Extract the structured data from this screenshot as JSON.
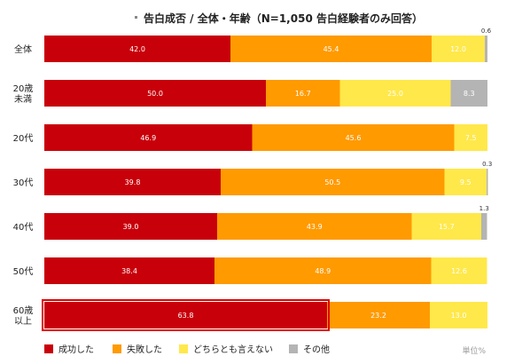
{
  "chart_data": {
    "type": "bar",
    "orientation": "horizontal",
    "stacked": true,
    "title": "告白成否 / 全体・年齢（N=1,050 告白経験者のみ回答）",
    "unit_note": "単位%",
    "categories": [
      "全体",
      "20歳\n未満",
      "20代",
      "30代",
      "40代",
      "50代",
      "60歳\n以上"
    ],
    "xlim": [
      0,
      100
    ],
    "grid": false,
    "legend_position": "bottom",
    "highlight_category": "60歳\n以上",
    "series": [
      {
        "name": "成功した",
        "color": "#c8000a",
        "values": [
          42.0,
          50.0,
          46.9,
          39.8,
          39.0,
          38.4,
          63.8
        ]
      },
      {
        "name": "失敗した",
        "color": "#ff9a00",
        "values": [
          45.4,
          16.7,
          45.6,
          50.5,
          43.9,
          48.9,
          23.2
        ]
      },
      {
        "name": "どちらとも言えない",
        "color": "#ffe84a",
        "values": [
          12.0,
          25.0,
          7.5,
          9.5,
          15.7,
          12.6,
          13.0
        ]
      },
      {
        "name": "その他",
        "color": "#b4b4b4",
        "values": [
          0.6,
          8.3,
          0.0,
          0.3,
          1.3,
          0.0,
          0.0
        ]
      }
    ],
    "data_labels": [
      [
        "42.0",
        "45.4",
        "12.0",
        "0.6"
      ],
      [
        "50.0",
        "16.7",
        "25.0",
        "8.3"
      ],
      [
        "46.9",
        "45.6",
        "7.5",
        ""
      ],
      [
        "39.8",
        "50.5",
        "9.5",
        "0.3"
      ],
      [
        "39.0",
        "43.9",
        "15.7",
        "1.3"
      ],
      [
        "38.4",
        "48.9",
        "12.6",
        ""
      ],
      [
        "63.8",
        "23.2",
        "13.0",
        ""
      ]
    ]
  }
}
